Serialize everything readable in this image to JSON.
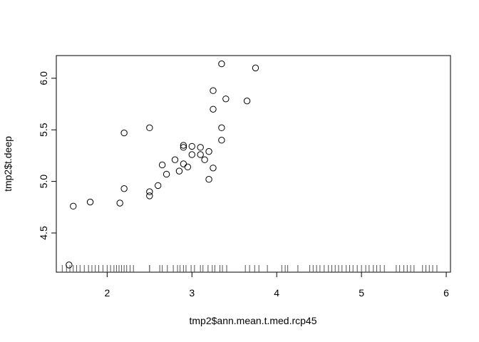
{
  "chart_data": {
    "type": "scatter",
    "title": "",
    "xlabel": "tmp2$ann.mean.t.med.rcp45",
    "ylabel": "tmp2$t.deep",
    "xlim": [
      1.4,
      6.05
    ],
    "ylim": [
      4.12,
      6.22
    ],
    "x_ticks": [
      2,
      3,
      4,
      5,
      6
    ],
    "x_tick_labels": [
      "2",
      "3",
      "4",
      "5",
      "6"
    ],
    "y_ticks": [
      4.5,
      5.0,
      5.5,
      6.0
    ],
    "y_tick_labels": [
      "4.5",
      "5.0",
      "5.5",
      "6.0"
    ],
    "grid": false,
    "points": [
      {
        "x": 1.55,
        "y": 4.19
      },
      {
        "x": 1.6,
        "y": 4.76
      },
      {
        "x": 1.8,
        "y": 4.8
      },
      {
        "x": 2.15,
        "y": 4.79
      },
      {
        "x": 2.2,
        "y": 4.93
      },
      {
        "x": 2.2,
        "y": 5.47
      },
      {
        "x": 2.5,
        "y": 4.9
      },
      {
        "x": 2.5,
        "y": 4.86
      },
      {
        "x": 2.5,
        "y": 5.52
      },
      {
        "x": 2.6,
        "y": 4.96
      },
      {
        "x": 2.65,
        "y": 5.16
      },
      {
        "x": 2.7,
        "y": 5.07
      },
      {
        "x": 2.8,
        "y": 5.21
      },
      {
        "x": 2.85,
        "y": 5.1
      },
      {
        "x": 2.9,
        "y": 5.17
      },
      {
        "x": 2.9,
        "y": 5.33
      },
      {
        "x": 2.9,
        "y": 5.35
      },
      {
        "x": 2.95,
        "y": 5.14
      },
      {
        "x": 3.0,
        "y": 5.26
      },
      {
        "x": 3.0,
        "y": 5.34
      },
      {
        "x": 3.1,
        "y": 5.33
      },
      {
        "x": 3.1,
        "y": 5.26
      },
      {
        "x": 3.15,
        "y": 5.21
      },
      {
        "x": 3.2,
        "y": 5.29
      },
      {
        "x": 3.2,
        "y": 5.02
      },
      {
        "x": 3.25,
        "y": 5.13
      },
      {
        "x": 3.25,
        "y": 5.7
      },
      {
        "x": 3.25,
        "y": 5.88
      },
      {
        "x": 3.35,
        "y": 5.4
      },
      {
        "x": 3.35,
        "y": 5.52
      },
      {
        "x": 3.35,
        "y": 6.14
      },
      {
        "x": 3.4,
        "y": 5.8
      },
      {
        "x": 3.65,
        "y": 5.78
      },
      {
        "x": 3.75,
        "y": 6.1
      }
    ],
    "rug_x": [
      1.47,
      1.52,
      1.56,
      1.6,
      1.64,
      1.68,
      1.73,
      1.78,
      1.82,
      1.86,
      1.9,
      1.95,
      2.0,
      2.04,
      2.08,
      2.11,
      2.14,
      2.17,
      2.2,
      2.23,
      2.27,
      2.31,
      2.5,
      2.5,
      2.62,
      2.65,
      2.71,
      2.78,
      2.83,
      2.86,
      2.9,
      2.93,
      2.99,
      3.03,
      3.1,
      3.13,
      3.19,
      3.24,
      3.27,
      3.33,
      3.36,
      3.41,
      3.63,
      3.68,
      3.74,
      3.79,
      3.89,
      4.06,
      4.1,
      4.13,
      4.25,
      4.39,
      4.43,
      4.47,
      4.51,
      4.56,
      4.61,
      4.65,
      4.69,
      4.73,
      4.77,
      4.82,
      4.86,
      4.9,
      4.95,
      5.0,
      5.05,
      5.09,
      5.14,
      5.18,
      5.22,
      5.27,
      5.41,
      5.45,
      5.5,
      5.54,
      5.58,
      5.62,
      5.72,
      5.76,
      5.8,
      5.84,
      5.89
    ]
  }
}
